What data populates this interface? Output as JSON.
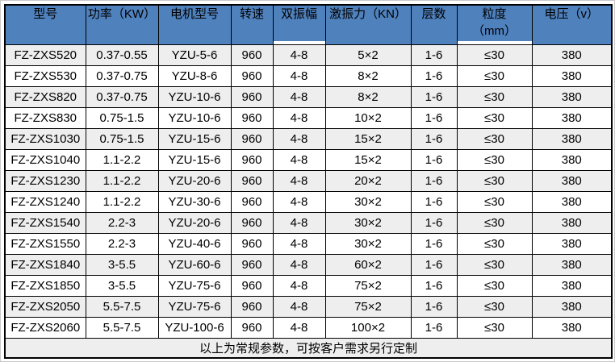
{
  "table": {
    "column_keys": [
      "model",
      "power-kw",
      "motor-model",
      "speed",
      "double-amplitude",
      "excitation-force-kn",
      "layers",
      "particle-size-mm",
      "voltage-v"
    ],
    "columns": [
      {
        "label": "型号"
      },
      {
        "label": "功率（KW）"
      },
      {
        "label": "电机型号"
      },
      {
        "label": "转速"
      },
      {
        "label": "双振幅",
        "white_underline": true
      },
      {
        "label": "激振力（KN）"
      },
      {
        "label": "层数"
      },
      {
        "label": "粒度",
        "sublabel": "（mm）",
        "white_underline": true
      },
      {
        "label": "电压（v）"
      }
    ],
    "rows": [
      [
        "FZ-ZXS520",
        "0.37-0.55",
        "YZU-5-6",
        "960",
        "4-8",
        "5×2",
        "1-6",
        "≤30",
        "380"
      ],
      [
        "FZ-ZXS530",
        "0.37-0.75",
        "YZU-8-6",
        "960",
        "4-8",
        "8×2",
        "1-6",
        "≤30",
        "380"
      ],
      [
        "FZ-ZXS820",
        "0.37-0.75",
        "YZU-10-6",
        "960",
        "4-8",
        "8×2",
        "1-6",
        "≤30",
        "380"
      ],
      [
        "FZ-ZXS830",
        "0.75-1.5",
        "YZU-10-6",
        "960",
        "4-8",
        "10×2",
        "1-6",
        "≤30",
        "380"
      ],
      [
        "FZ-ZXS1030",
        "0.75-1.5",
        "YZU-15-6",
        "960",
        "4-8",
        "15×2",
        "1-6",
        "≤30",
        "380"
      ],
      [
        "FZ-ZXS1040",
        "1.1-2.2",
        "YZU-15-6",
        "960",
        "4-8",
        "15×2",
        "1-6",
        "≤30",
        "380"
      ],
      [
        "FZ-ZXS1230",
        "1.1-2.2",
        "YZU-20-6",
        "960",
        "4-8",
        "20×2",
        "1-6",
        "≤30",
        "380"
      ],
      [
        "FZ-ZXS1240",
        "1.1-2.2",
        "YZU-30-6",
        "960",
        "4-8",
        "30×2",
        "1-6",
        "≤30",
        "380"
      ],
      [
        "FZ-ZXS1540",
        "2.2-3",
        "YZU-20-6",
        "960",
        "4-8",
        "30×2",
        "1-6",
        "≤30",
        "380"
      ],
      [
        "FZ-ZXS1550",
        "2.2-3",
        "YZU-40-6",
        "960",
        "4-8",
        "30×2",
        "1-6",
        "≤30",
        "380"
      ],
      [
        "FZ-ZXS1840",
        "3-5.5",
        "YZU-60-6",
        "960",
        "4-8",
        "60×2",
        "1-6",
        "≤30",
        "380"
      ],
      [
        "FZ-ZXS1850",
        "3-5.5",
        "YZU-75-6",
        "960",
        "4-8",
        "75×2",
        "1-6",
        "≤30",
        "380"
      ],
      [
        "FZ-ZXS2050",
        "5.5-7.5",
        "YZU-75-6",
        "960",
        "4-8",
        "75×2",
        "1-6",
        "≤30",
        "380"
      ],
      [
        "FZ-ZXS2060",
        "5.5-7.5",
        "YZU-100-6",
        "960",
        "4-8",
        "100×2",
        "1-6",
        "≤30",
        "380"
      ]
    ],
    "footer_note": "以上为常规参数，可按客户需求另行定制"
  },
  "colors": {
    "header_bg": "#4f81bd",
    "row_stripe_bg": "#eeeeee",
    "row_bg": "#ffffff",
    "footer_bg": "#eeeeee",
    "border": "#000000",
    "text": "#000000"
  }
}
